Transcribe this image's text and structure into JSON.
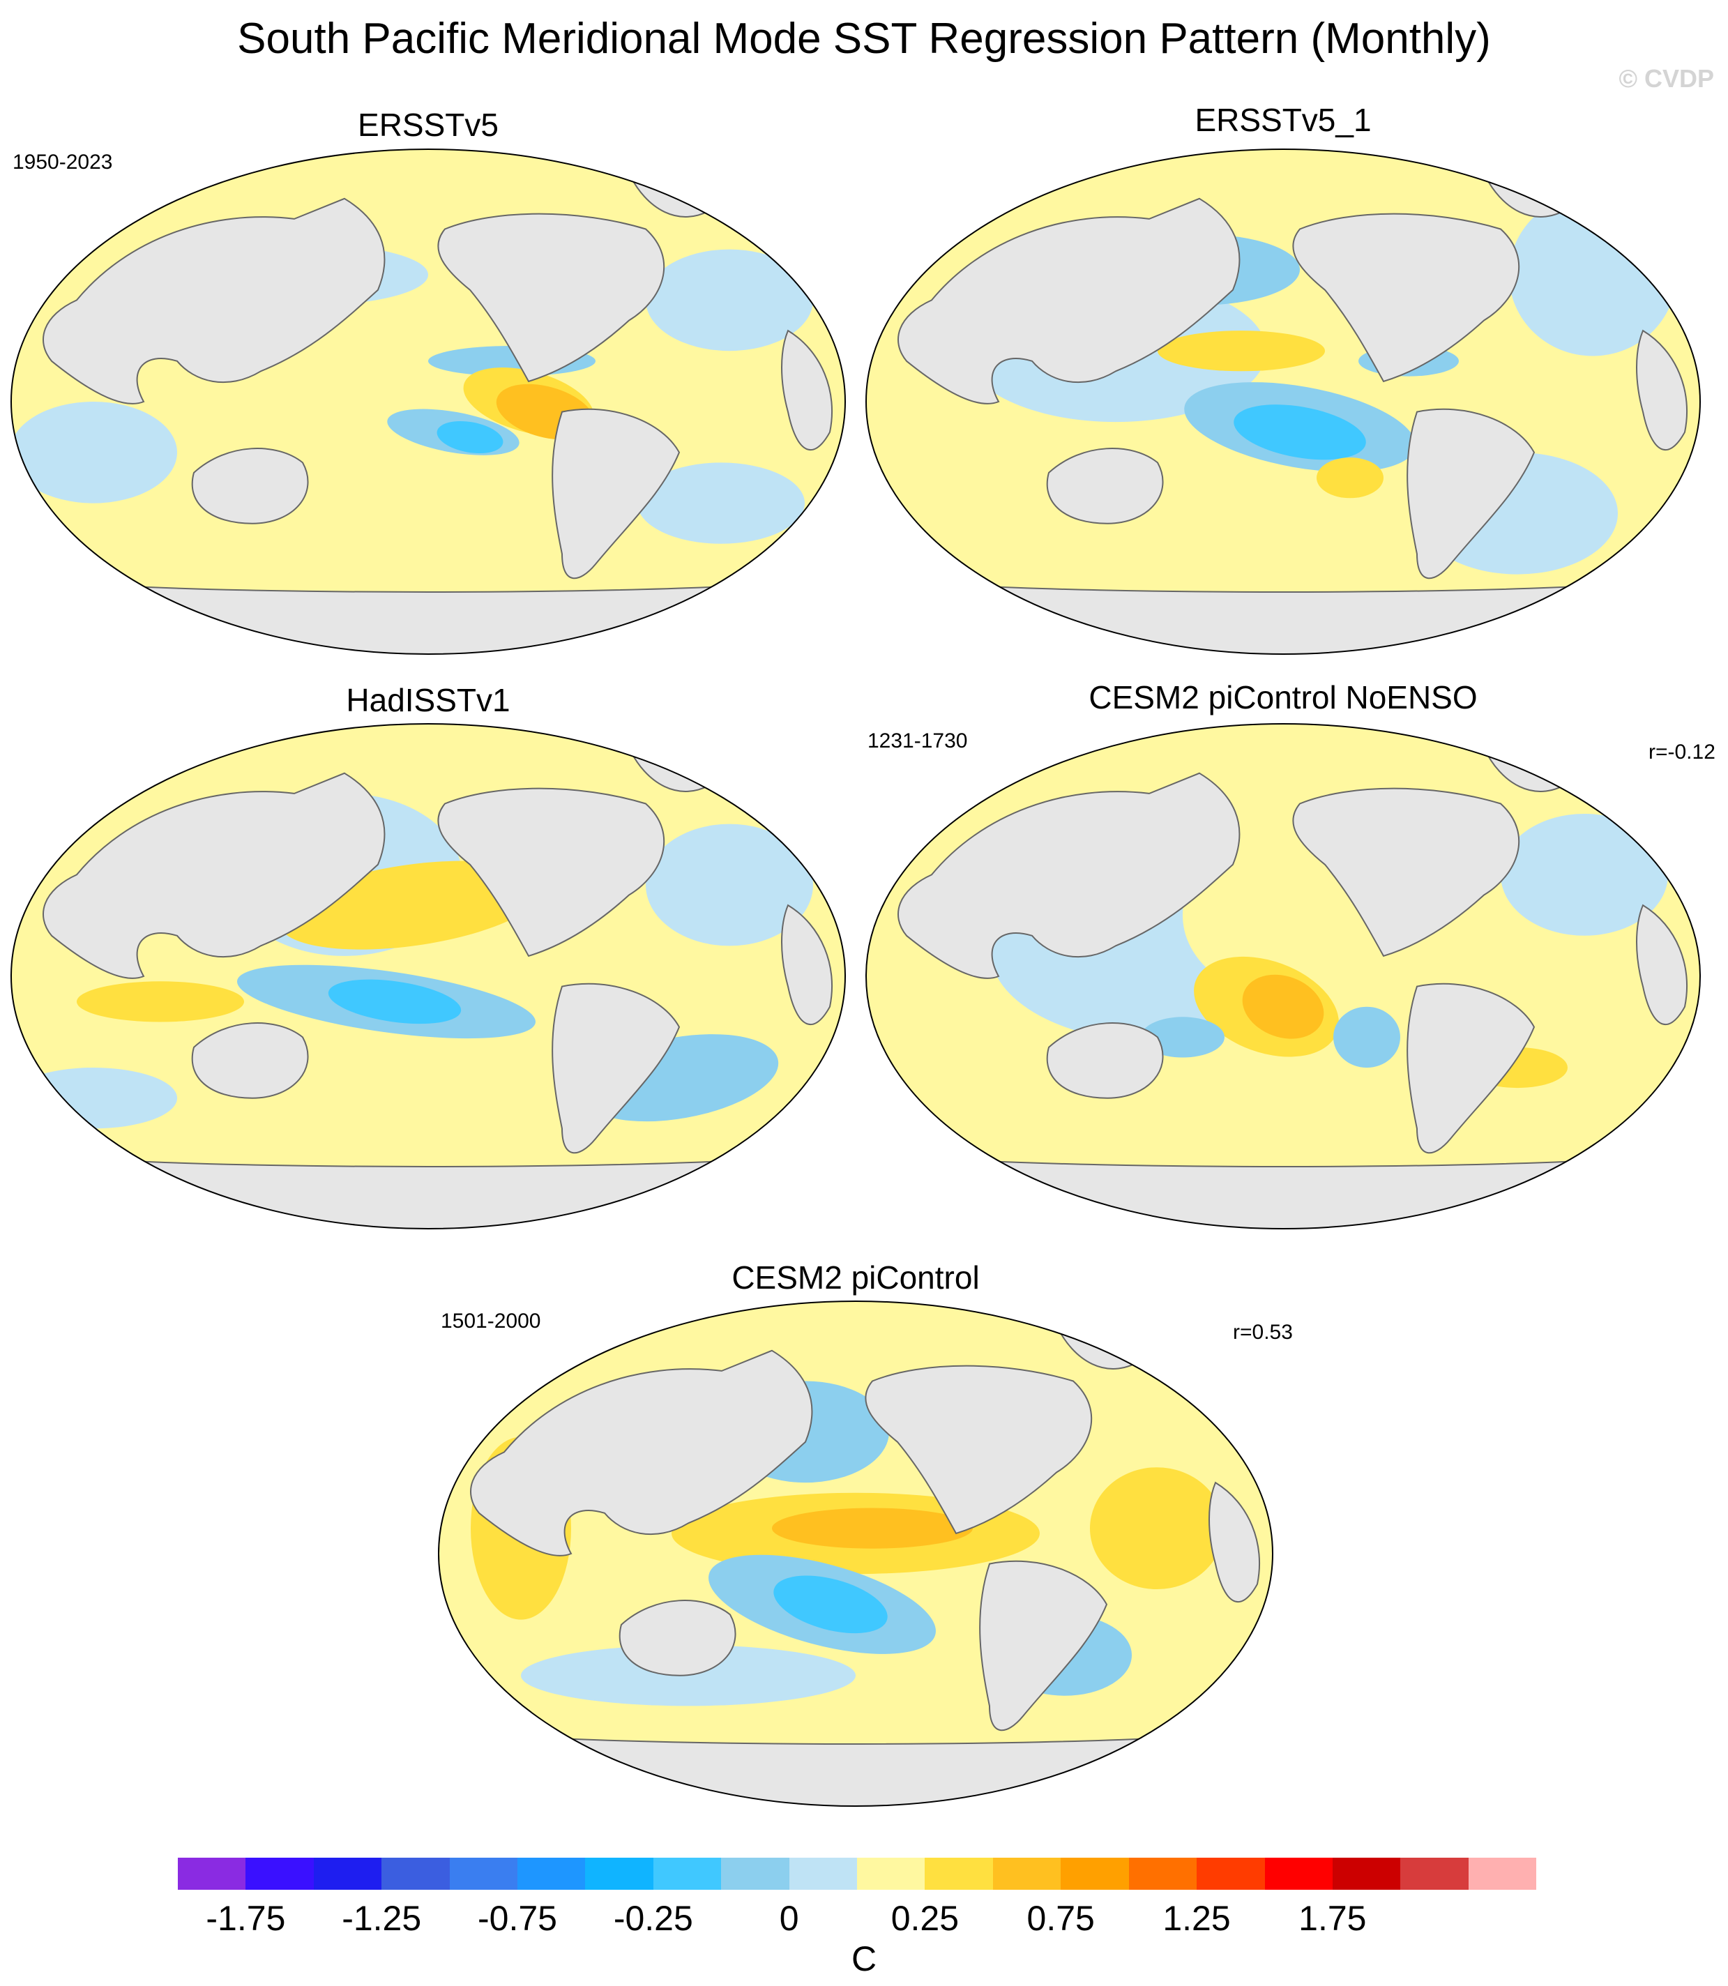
{
  "title": "South Pacific Meridional Mode SST Regression Pattern (Monthly)",
  "watermark": "© CVDP",
  "panels": [
    {
      "name": "ERSSTv5",
      "period": "1950-2023",
      "corr": ""
    },
    {
      "name": "ERSSTv5_1",
      "period": "",
      "corr": ""
    },
    {
      "name": "HadISSTv1",
      "period": "",
      "corr": ""
    },
    {
      "name": "CESM2 piControl NoENSO",
      "period": "1231-1730",
      "corr": "r=-0.12"
    },
    {
      "name": "CESM2 piControl",
      "period": "1501-2000",
      "corr": "r=0.53"
    }
  ],
  "colorbar": {
    "colors": [
      "#8a2be2",
      "#3a10ff",
      "#1e1ef0",
      "#3b5ee0",
      "#3a7ef0",
      "#1e96ff",
      "#10b4ff",
      "#40c8ff",
      "#8ccfee",
      "#bfe3f5",
      "#fff8a0",
      "#ffe040",
      "#ffc020",
      "#ffa000",
      "#ff7000",
      "#ff3c00",
      "#ff0000",
      "#cc0000",
      "#d73c3c",
      "#ffb0b0"
    ],
    "tick_labels": [
      "-1.75",
      "-1.25",
      "-0.75",
      "-0.25",
      "0",
      "0.25",
      "0.75",
      "1.25",
      "1.75"
    ],
    "units": "C"
  },
  "palette": {
    "land": "#e6e6e6",
    "neg_light": "#bfe3f5",
    "neg_mid": "#8ccfee",
    "neg_strong": "#40c8ff",
    "pos_light": "#fff8a0",
    "pos_mid": "#ffe040",
    "pos_strong": "#ffc020"
  }
}
